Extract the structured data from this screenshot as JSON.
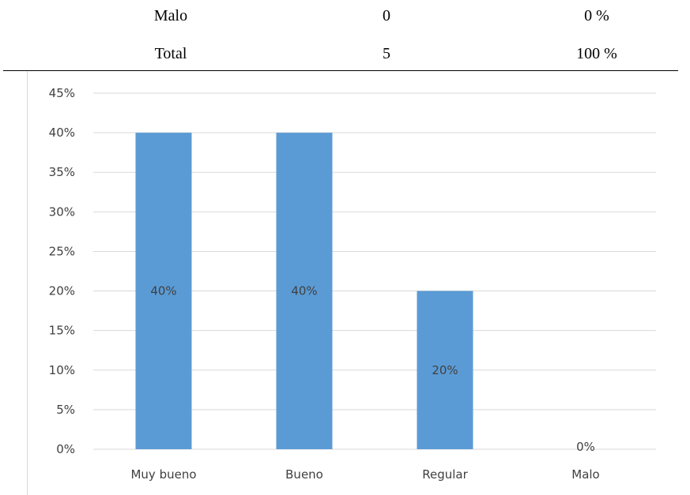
{
  "table": {
    "rows": [
      {
        "label": "Malo",
        "count": "0",
        "percent": "0 %"
      },
      {
        "label": "Total",
        "count": "5",
        "percent": "100 %"
      }
    ]
  },
  "chart_data": {
    "type": "bar",
    "categories": [
      "Muy bueno",
      "Bueno",
      "Regular",
      "Malo"
    ],
    "values": [
      0.4,
      0.4,
      0.2,
      0.0
    ],
    "data_labels": [
      "40%",
      "40%",
      "20%",
      "0%"
    ],
    "y_ticks": [
      "0%",
      "5%",
      "10%",
      "15%",
      "20%",
      "25%",
      "30%",
      "35%",
      "40%",
      "45%"
    ],
    "ylim": [
      0,
      0.45
    ],
    "grid": true,
    "legend": "none",
    "bar_color": "#5b9bd5",
    "grid_color": "#d9d9d9",
    "label_color": "#404040"
  }
}
